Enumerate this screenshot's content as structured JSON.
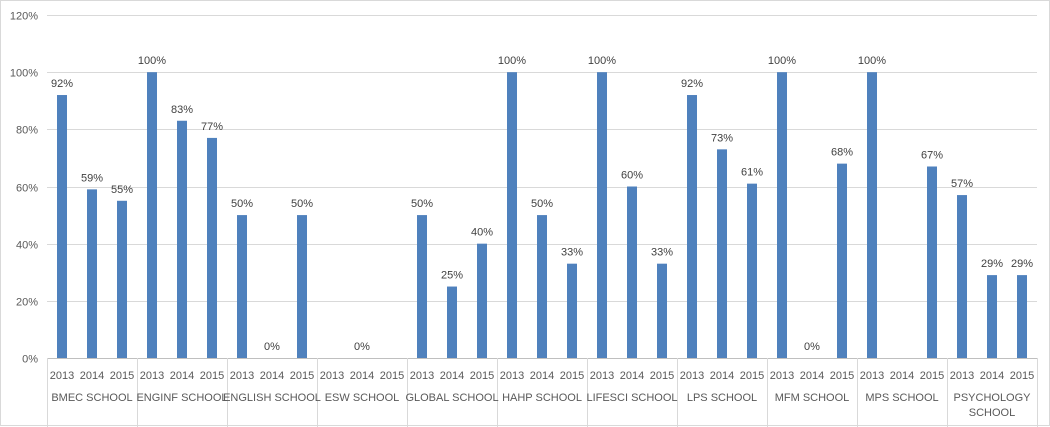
{
  "chart_data": {
    "type": "bar",
    "title": "",
    "xlabel": "",
    "ylabel": "",
    "ylim": [
      0,
      1.2
    ],
    "y_ticks": [
      "0%",
      "20%",
      "40%",
      "60%",
      "80%",
      "100%",
      "120%"
    ],
    "grid": true,
    "legend": "none",
    "bar_color": "#4f81bd",
    "groups": [
      {
        "name": "BMEC SCHOOL",
        "bars": [
          {
            "year": "2013",
            "value": 0.92,
            "label": "92%"
          },
          {
            "year": "2014",
            "value": 0.59,
            "label": "59%"
          },
          {
            "year": "2015",
            "value": 0.55,
            "label": "55%"
          }
        ]
      },
      {
        "name": "ENGINF SCHOOL",
        "bars": [
          {
            "year": "2013",
            "value": 1.0,
            "label": "100%"
          },
          {
            "year": "2014",
            "value": 0.83,
            "label": "83%"
          },
          {
            "year": "2015",
            "value": 0.77,
            "label": "77%"
          }
        ]
      },
      {
        "name": "ENGLISH SCHOOL",
        "bars": [
          {
            "year": "2013",
            "value": 0.5,
            "label": "50%"
          },
          {
            "year": "2014",
            "value": 0.0,
            "label": "0%"
          },
          {
            "year": "2015",
            "value": 0.5,
            "label": "50%"
          }
        ]
      },
      {
        "name": "ESW SCHOOL",
        "bars": [
          {
            "year": "2013",
            "value": null,
            "label": ""
          },
          {
            "year": "2014",
            "value": 0.0,
            "label": "0%"
          },
          {
            "year": "2015",
            "value": null,
            "label": ""
          }
        ]
      },
      {
        "name": "GLOBAL SCHOOL",
        "bars": [
          {
            "year": "2013",
            "value": 0.5,
            "label": "50%"
          },
          {
            "year": "2014",
            "value": 0.25,
            "label": "25%"
          },
          {
            "year": "2015",
            "value": 0.4,
            "label": "40%"
          }
        ]
      },
      {
        "name": "HAHP SCHOOL",
        "bars": [
          {
            "year": "2013",
            "value": 1.0,
            "label": "100%"
          },
          {
            "year": "2014",
            "value": 0.5,
            "label": "50%"
          },
          {
            "year": "2015",
            "value": 0.33,
            "label": "33%"
          }
        ]
      },
      {
        "name": "LIFESCI SCHOOL",
        "bars": [
          {
            "year": "2013",
            "value": 1.0,
            "label": "100%"
          },
          {
            "year": "2014",
            "value": 0.6,
            "label": "60%"
          },
          {
            "year": "2015",
            "value": 0.33,
            "label": "33%"
          }
        ]
      },
      {
        "name": "LPS SCHOOL",
        "bars": [
          {
            "year": "2013",
            "value": 0.92,
            "label": "92%"
          },
          {
            "year": "2014",
            "value": 0.73,
            "label": "73%"
          },
          {
            "year": "2015",
            "value": 0.61,
            "label": "61%"
          }
        ]
      },
      {
        "name": "MFM SCHOOL",
        "bars": [
          {
            "year": "2013",
            "value": 1.0,
            "label": "100%"
          },
          {
            "year": "2014",
            "value": 0.0,
            "label": "0%"
          },
          {
            "year": "2015",
            "value": 0.68,
            "label": "68%"
          }
        ]
      },
      {
        "name": "MPS SCHOOL",
        "bars": [
          {
            "year": "2013",
            "value": 1.0,
            "label": "100%"
          },
          {
            "year": "2014",
            "value": null,
            "label": ""
          },
          {
            "year": "2015",
            "value": 0.67,
            "label": "67%"
          }
        ]
      },
      {
        "name": "PSYCHOLOGY SCHOOL",
        "name_lines": [
          "PSYCHOLOGY",
          "SCHOOL"
        ],
        "bars": [
          {
            "year": "2013",
            "value": 0.57,
            "label": "57%"
          },
          {
            "year": "2014",
            "value": 0.29,
            "label": "29%"
          },
          {
            "year": "2015",
            "value": 0.29,
            "label": "29%"
          }
        ]
      }
    ]
  }
}
